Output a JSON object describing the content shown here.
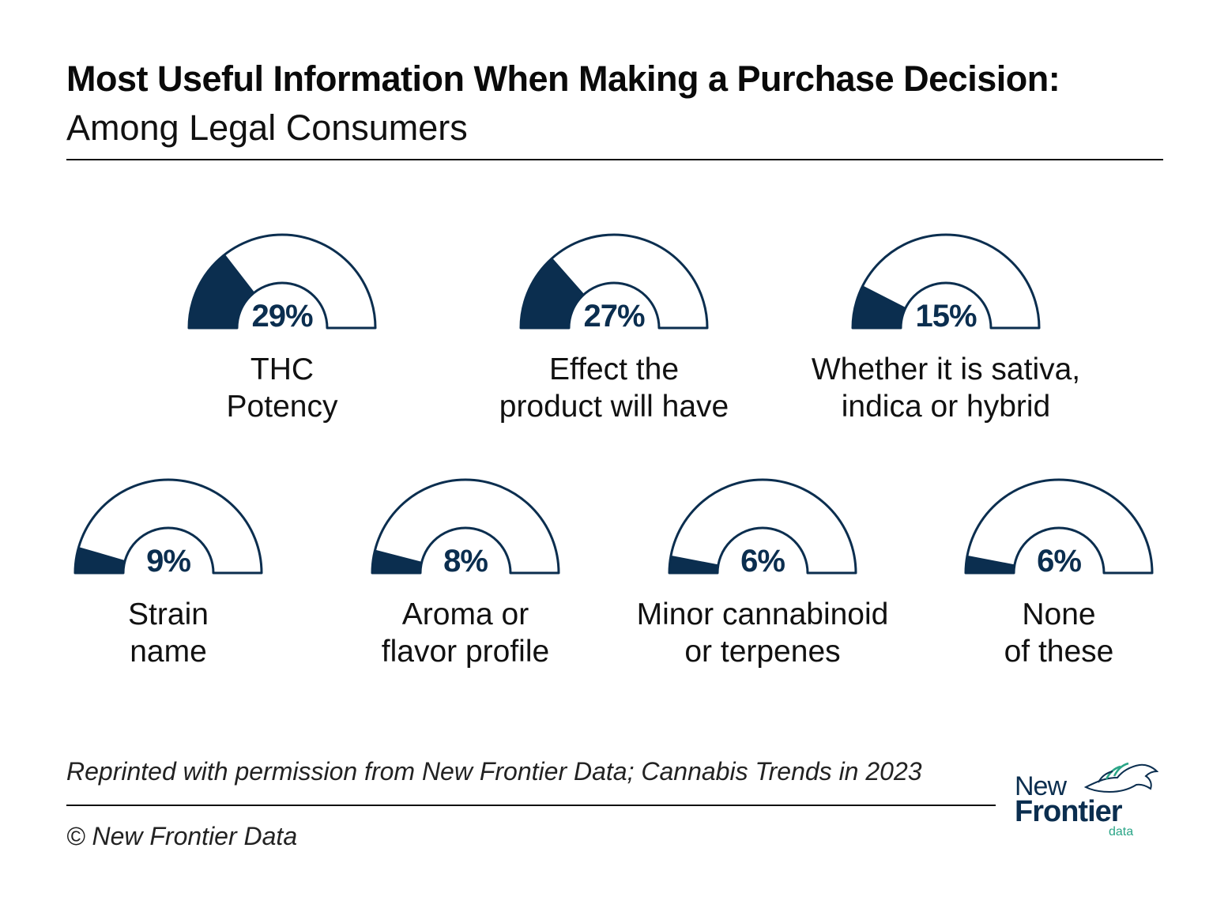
{
  "header": {
    "title": "Most Useful Information When Making a Purchase Decision:",
    "subtitle": "Among Legal Consumers"
  },
  "colors": {
    "fill": "#0b2e4f",
    "outline": "#0b2e4f",
    "accent": "#2aa587"
  },
  "chart_data": {
    "type": "gauge",
    "unit": "%",
    "max": 100,
    "items": [
      {
        "label": [
          "THC",
          "Potency"
        ],
        "value": 29,
        "value_text": "29%"
      },
      {
        "label": [
          "Effect the",
          "product will have"
        ],
        "value": 27,
        "value_text": "27%"
      },
      {
        "label": [
          "Whether it is sativa,",
          "indica or hybrid"
        ],
        "value": 15,
        "value_text": "15%"
      },
      {
        "label": [
          "Strain",
          "name"
        ],
        "value": 9,
        "value_text": "9%"
      },
      {
        "label": [
          "Aroma or",
          "flavor profile"
        ],
        "value": 8,
        "value_text": "8%"
      },
      {
        "label": [
          "Minor cannabinoid",
          "or terpenes"
        ],
        "value": 6,
        "value_text": "6%"
      },
      {
        "label": [
          "None",
          "of these"
        ],
        "value": 6,
        "value_text": "6%"
      }
    ]
  },
  "footer": {
    "source": "Reprinted with permission from New Frontier Data; Cannabis Trends in 2023",
    "copyright": "© New Frontier Data"
  },
  "logo": {
    "line1": "New",
    "line2": "Frontier",
    "line3": "data",
    "mark_icon": "horse-head-icon"
  }
}
